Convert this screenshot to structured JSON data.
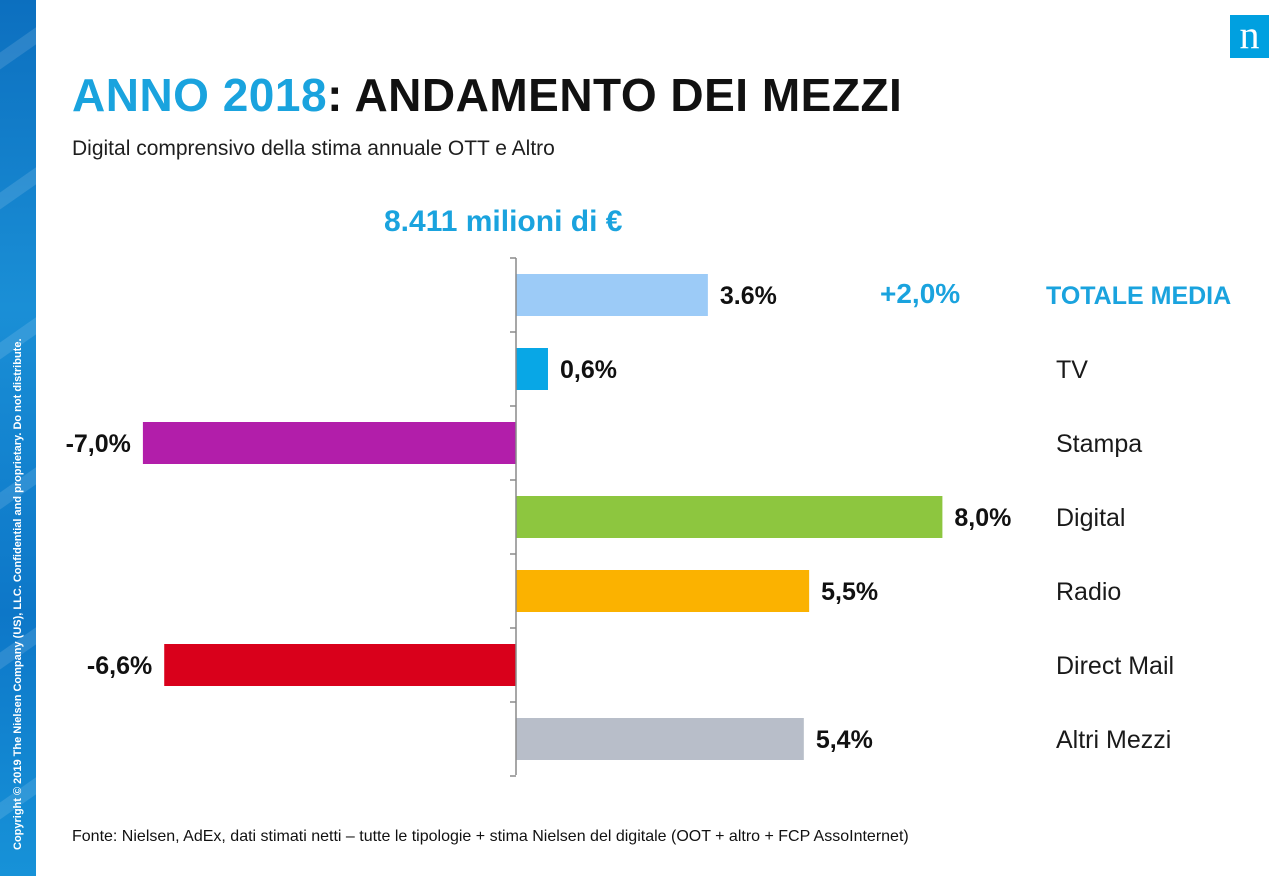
{
  "slide": {
    "title_accent": "ANNO 2018",
    "title_rest": ": ANDAMENTO DEI MEZZI",
    "subtitle": "Digital comprensivo della stima annuale OTT e Altro",
    "total_value": "8.411 milioni di €",
    "total_change": "+2,0%",
    "footer": "Fonte: Nielsen,  AdEx, dati stimati netti – tutte le tipologie + stima Nielsen del digitale  (OOT  + altro +  FCP AssoInternet)",
    "copyright": "Copyright © 2019 The Nielsen Company (US), LLC. Confidential and proprietary. Do not distribute.",
    "logo_letter": "n"
  },
  "chart_data": {
    "type": "bar",
    "orientation": "horizontal",
    "categories": [
      "TOTALE MEDIA",
      "TV",
      "Stampa",
      "Digital",
      "Radio",
      "Direct Mail",
      "Altri Mezzi"
    ],
    "values": [
      3.6,
      0.6,
      -7.0,
      8.0,
      5.5,
      -6.6,
      5.4
    ],
    "value_labels": [
      "3.6%",
      "0,6%",
      "-7,0%",
      "8,0%",
      "5,5%",
      "-6,6%",
      "5,4%"
    ],
    "colors": [
      "#9ccbf7",
      "#08a7e6",
      "#b21eaa",
      "#8dc63f",
      "#fbb200",
      "#d9001b",
      "#b8bec9"
    ],
    "highlight_category": "TOTALE MEDIA",
    "highlight_color": "#1aa3de",
    "xlim": [
      -7.0,
      8.0
    ],
    "grid": false,
    "legend": "none"
  }
}
